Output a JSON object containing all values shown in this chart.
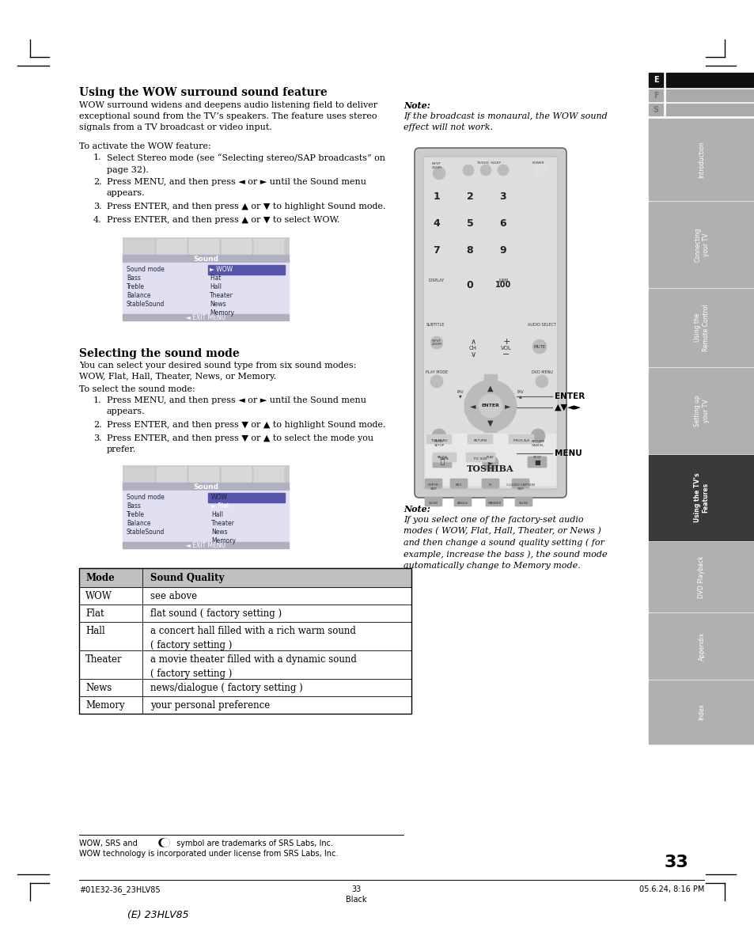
{
  "page_bg": "#ffffff",
  "title1": "Using the WOW surround sound feature",
  "title2": "Selecting the sound mode",
  "body_text1": "WOW surround widens and deepens audio listening field to deliver\nexceptional sound from the TV’s speakers. The feature uses stereo\nsignals from a TV broadcast or video input.",
  "activate_label": "To activate the WOW feature:",
  "activate_steps": [
    "Select Stereo mode (see “Selecting stereo/SAP broadcasts” on\npage 32).",
    "Press MENU, and then press ◄ or ► until the Sound menu\nappears.",
    "Press ENTER, and then press ▲ or ▼ to highlight Sound mode.",
    "Press ENTER, and then press ▲ or ▼ to select WOW."
  ],
  "note1_label": "Note:",
  "note1_text": "If the broadcast is monaural, the WOW sound\neffect will not work.",
  "select_body": "You can select your desired sound type from six sound modes:\nWOW, Flat, Hall, Theater, News, or Memory.",
  "select_label": "To select the sound mode:",
  "select_steps": [
    "Press MENU, and then press ◄ or ► until the Sound menu\nappears.",
    "Press ENTER, and then press ▼ or ▲ to highlight Sound mode.",
    "Press ENTER, and then press ▼ or ▲ to select the mode you\nprefer."
  ],
  "note2_label": "Note:",
  "note2_text": "If you select one of the factory-set audio\nmodes ( WOW, Flat, Hall, Theater, or News )\nand then change a sound quality setting ( for\nexample, increase the bass ), the sound mode\nautomatically change to Memory mode.",
  "table_header": [
    "Mode",
    "Sound Quality"
  ],
  "table_rows": [
    [
      "WOW",
      "see above"
    ],
    [
      "Flat",
      "flat sound ( factory setting )"
    ],
    [
      "Hall",
      "a concert hall filled with a rich warm sound\n( factory setting )"
    ],
    [
      "Theater",
      "a movie theater filled with a dynamic sound\n( factory setting )"
    ],
    [
      "News",
      "news/dialogue ( factory setting )"
    ],
    [
      "Memory",
      "your personal preference"
    ]
  ],
  "footer_text1_a": "WOW, SRS and ",
  "footer_text1_b": " symbol are trademarks of SRS Labs, Inc.",
  "footer_text2": "WOW technology is incorporated under license from SRS Labs, Inc.",
  "footer_left": "#01E32-36_23HLV85",
  "footer_center": "33",
  "footer_right": "05.6.24, 8:16 PM",
  "footer_color_label": "Black",
  "footer_bottom": "(E) 23HLV85",
  "page_number": "33",
  "sidebar_efs": [
    "E",
    "F",
    "S"
  ],
  "sidebar_sections": [
    "Introduction",
    "Connecting\nyour TV",
    "Using the\nRemote Control",
    "Setting up\nyour TV",
    "Using the TV’s\nFeatures",
    "DVD Playback",
    "Appendix",
    "Index"
  ],
  "sidebar_active_section": 4,
  "sidebar_section_colors": [
    "#b0b0b0",
    "#b0b0b0",
    "#b0b0b0",
    "#b0b0b0",
    "#3a3a3a",
    "#b0b0b0",
    "#b0b0b0",
    "#b0b0b0"
  ]
}
